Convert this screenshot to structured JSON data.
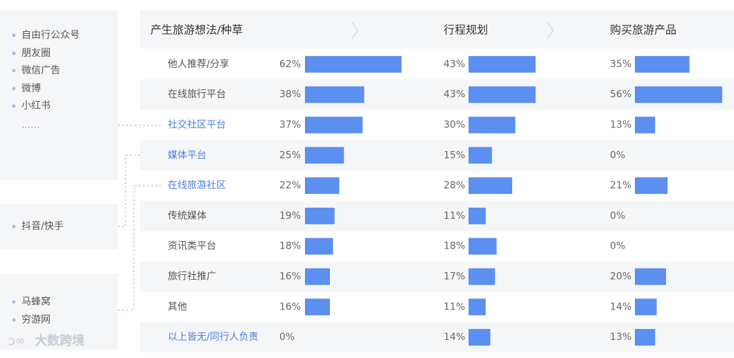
{
  "chart_data": {
    "type": "bar",
    "categories": [
      "他人推荐/分享",
      "在线旅行平台",
      "社交社区平台",
      "媒体平台",
      "在线旅游社区",
      "传统媒体",
      "资讯类平台",
      "旅行社推广",
      "其他",
      "以上皆无/同行人负责"
    ],
    "highlighted": [
      2,
      3,
      4,
      9
    ],
    "highlight_color": "#4a80d8",
    "xlim": [
      0,
      60
    ],
    "series": [
      {
        "name": "产生旅游想法/种草",
        "color": "#5b8ff0",
        "values": [
          62,
          38,
          37,
          25,
          22,
          19,
          18,
          16,
          16,
          0
        ],
        "value_labels": [
          "62%",
          "38%",
          "37%",
          "25%",
          "22%",
          "19%",
          "18%",
          "16%",
          "16%",
          "0%"
        ]
      },
      {
        "name": "行程规划",
        "color": "#5b8ff0",
        "values": [
          43,
          43,
          30,
          15,
          28,
          11,
          18,
          17,
          11,
          14
        ],
        "value_labels": [
          "43%",
          "43%",
          "30%",
          "15%",
          "28%",
          "11%",
          "18%",
          "17%",
          "11%",
          "14%"
        ]
      },
      {
        "name": "购买旅游产品",
        "color": "#5b8ff0",
        "values": [
          35,
          56,
          13,
          0,
          21,
          0,
          0,
          20,
          14,
          13
        ],
        "value_labels": [
          "35%",
          "56%",
          "13%",
          "0%",
          "21%",
          "0%",
          "0%",
          "20%",
          "14%",
          "13%"
        ]
      }
    ]
  },
  "side_groups": [
    {
      "items": [
        "自由行公众号",
        "朋友圈",
        "微信广告",
        "微博",
        "小红书"
      ],
      "more": "……"
    },
    {
      "items": [
        "抖音/快手"
      ]
    },
    {
      "items": [
        "马蜂窝",
        "穷游网"
      ]
    }
  ],
  "watermark": "大数跨境"
}
